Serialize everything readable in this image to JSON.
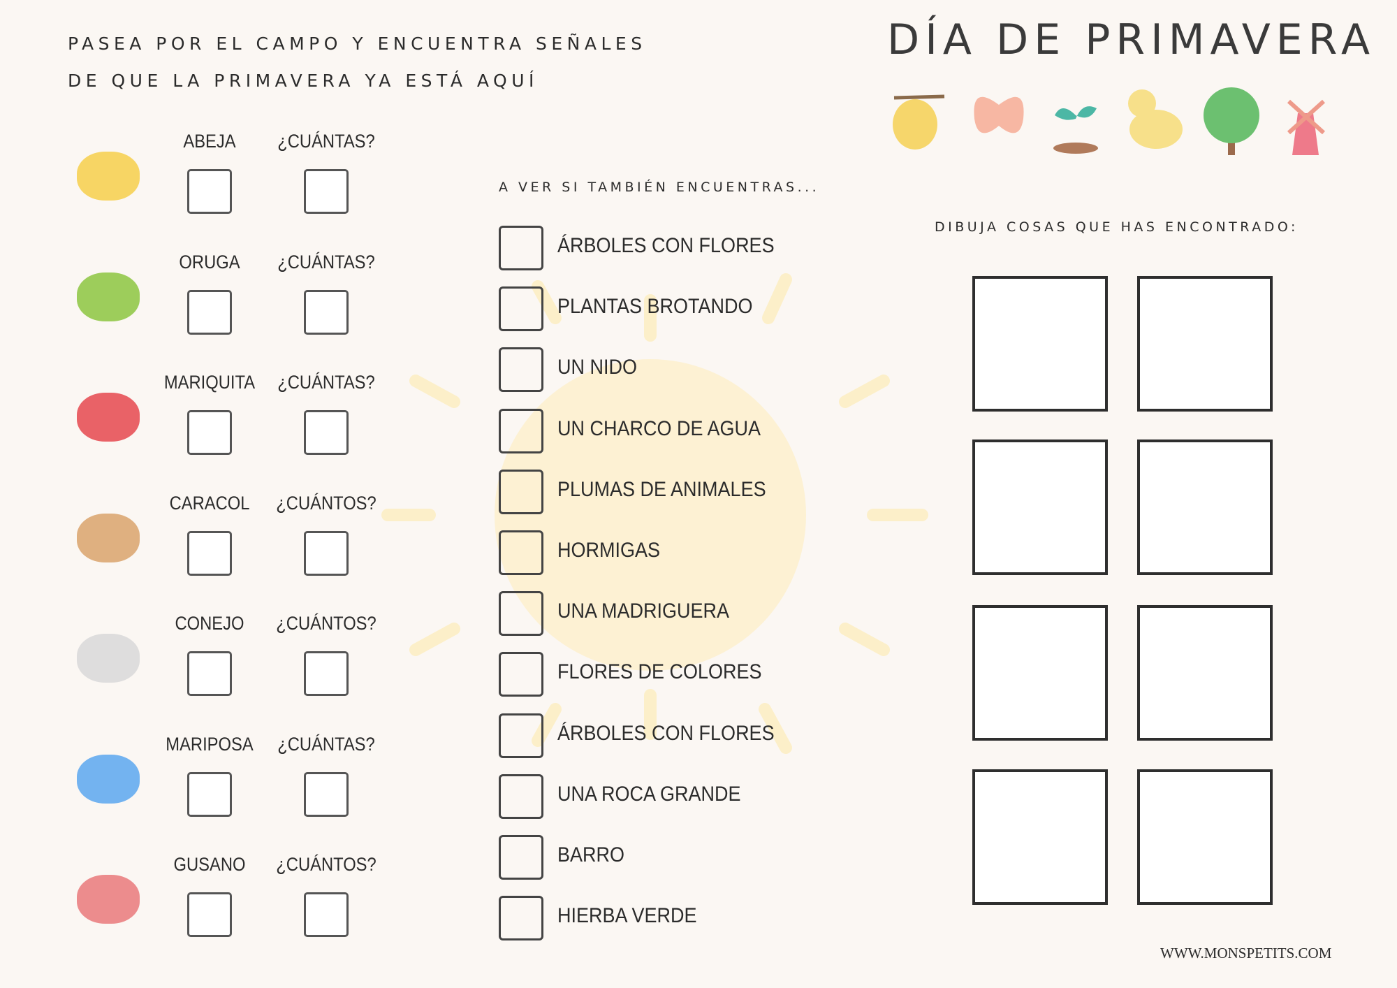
{
  "intro": [
    "PASEA POR EL CAMPO Y ENCUENTRA SEÑALES",
    "DE QUE LA PRIMAVERA YA ESTÁ AQUÍ"
  ],
  "title": "DÍA DE PRIMAVERA",
  "animals": [
    {
      "name": "ABEJA",
      "count_label": "¿CUÁNTAS?"
    },
    {
      "name": "ORUGA",
      "count_label": "¿CUÁNTAS?"
    },
    {
      "name": "MARIQUITA",
      "count_label": "¿CUÁNTAS?"
    },
    {
      "name": "CARACOL",
      "count_label": "¿CUÁNTOS?"
    },
    {
      "name": "CONEJO",
      "count_label": "¿CUÁNTOS?"
    },
    {
      "name": "MARIPOSA",
      "count_label": "¿CUÁNTAS?"
    },
    {
      "name": "GUSANO",
      "count_label": "¿CUÁNTOS?"
    }
  ],
  "checklist": {
    "heading": "A VER SI TAMBIÉN ENCUENTRAS...",
    "items": [
      "ÁRBOLES CON FLORES",
      "PLANTAS BROTANDO",
      "UN NIDO",
      "UN CHARCO DE AGUA",
      "PLUMAS DE ANIMALES",
      "HORMIGAS",
      "UNA MADRIGUERA",
      "FLORES DE COLORES",
      "ÁRBOLES CON FLORES",
      "UNA ROCA GRANDE",
      "BARRO",
      "HIERBA VERDE"
    ]
  },
  "draw": {
    "heading": "DIBUJA COSAS QUE HAS ENCONTRADO:"
  },
  "footer": "WWW.MONSPETITS.COM"
}
